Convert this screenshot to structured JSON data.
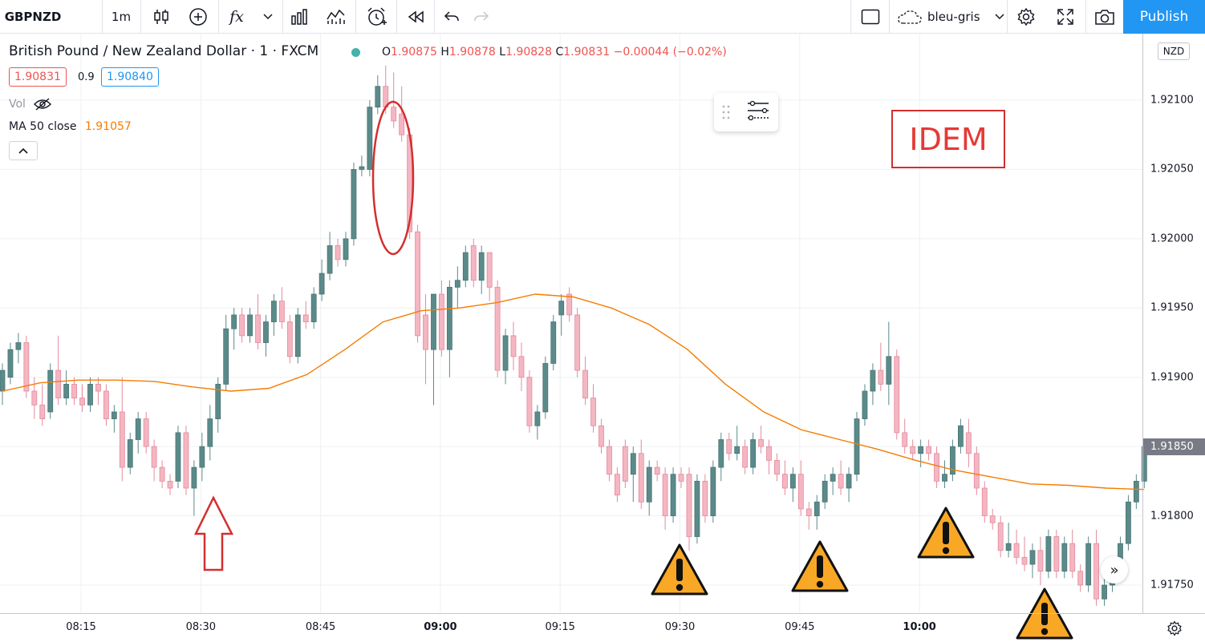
{
  "toolbar": {
    "symbol": "GBPNZD",
    "interval": "1m",
    "indicators_glyph": "fx",
    "theme_name": "bleu-gris",
    "publish_label": "Publish"
  },
  "legend": {
    "title": "British Pound / New Zealand Dollar · 1 · FXCM",
    "o_key": "O",
    "o": "1.90875",
    "h_key": "H",
    "h": "1.90878",
    "l_key": "L",
    "l": "1.90828",
    "c_key": "C",
    "c": "1.90831",
    "change": "−0.00044 (−0.02%)",
    "bid": "1.90831",
    "spread": "0.9",
    "ask": "1.90840",
    "vol_label": "Vol",
    "ma_label": "MA 50 close",
    "ma_value": "1.91057"
  },
  "price_scale": {
    "currency": "NZD",
    "current": "1.91850"
  },
  "annotation": {
    "text": "IDEM"
  },
  "colors": {
    "up": "#5b8a8a",
    "down": "#f4b6c2",
    "down_stroke": "#e48a9c",
    "ma": "#f57c00",
    "accent": "#2196f3",
    "annotation": "#d32f2f",
    "grid": "#eef0f3"
  },
  "icons": [
    "candles-icon",
    "add-indicator-icon",
    "fx-icon",
    "bar-chart-icon",
    "chart-templates-icon",
    "alarm-icon",
    "replay-icon",
    "undo-icon",
    "redo-icon",
    "layout-icon",
    "cloud-icon",
    "gear-icon",
    "fullscreen-icon",
    "camera-icon"
  ],
  "chart_data": {
    "type": "candlestick",
    "symbol": "GBPNZD",
    "timeframe": "1m",
    "time_ticks": [
      "08:15",
      "08:30",
      "08:45",
      "09:00",
      "09:15",
      "09:30",
      "09:45",
      "10:00"
    ],
    "price_ticks": [
      "1.91750",
      "1.91800",
      "1.91850",
      "1.91900",
      "1.91950",
      "1.92000",
      "1.92050",
      "1.92100"
    ],
    "ylim": [
      1.9171,
      1.9216
    ],
    "grid": true,
    "candles": [
      [
        1.9189,
        1.9191,
        1.9188,
        1.91905
      ],
      [
        1.919,
        1.91925,
        1.91895,
        1.9192
      ],
      [
        1.9192,
        1.91932,
        1.9191,
        1.91925
      ],
      [
        1.91925,
        1.9193,
        1.91885,
        1.9189
      ],
      [
        1.9189,
        1.919,
        1.9187,
        1.9188
      ],
      [
        1.9188,
        1.91895,
        1.91865,
        1.9187
      ],
      [
        1.91875,
        1.9191,
        1.9187,
        1.91905
      ],
      [
        1.91905,
        1.9193,
        1.9188,
        1.91885
      ],
      [
        1.91885,
        1.91905,
        1.9188,
        1.91895
      ],
      [
        1.91895,
        1.919,
        1.9188,
        1.91885
      ],
      [
        1.91885,
        1.91895,
        1.91875,
        1.9188
      ],
      [
        1.9188,
        1.919,
        1.91875,
        1.91895
      ],
      [
        1.91895,
        1.919,
        1.9188,
        1.9189
      ],
      [
        1.9189,
        1.91895,
        1.91865,
        1.9187
      ],
      [
        1.9187,
        1.9188,
        1.9186,
        1.91875
      ],
      [
        1.91875,
        1.919,
        1.91825,
        1.91835
      ],
      [
        1.91835,
        1.9186,
        1.9183,
        1.91855
      ],
      [
        1.91855,
        1.91875,
        1.91845,
        1.9187
      ],
      [
        1.9187,
        1.91875,
        1.91845,
        1.9185
      ],
      [
        1.9185,
        1.91855,
        1.91825,
        1.91835
      ],
      [
        1.91835,
        1.9184,
        1.9182,
        1.91825
      ],
      [
        1.91825,
        1.9183,
        1.91815,
        1.9182
      ],
      [
        1.91825,
        1.91865,
        1.9182,
        1.9186
      ],
      [
        1.9186,
        1.91865,
        1.91815,
        1.9182
      ],
      [
        1.9182,
        1.9184,
        1.918,
        1.91835
      ],
      [
        1.91835,
        1.9186,
        1.91825,
        1.9185
      ],
      [
        1.9185,
        1.9188,
        1.9184,
        1.9187
      ],
      [
        1.9187,
        1.919,
        1.9186,
        1.91895
      ],
      [
        1.91895,
        1.91945,
        1.9189,
        1.91935
      ],
      [
        1.91935,
        1.9195,
        1.9192,
        1.91945
      ],
      [
        1.91945,
        1.9195,
        1.91925,
        1.9193
      ],
      [
        1.9193,
        1.9195,
        1.91925,
        1.91945
      ],
      [
        1.91945,
        1.9196,
        1.9192,
        1.91925
      ],
      [
        1.91925,
        1.91945,
        1.91915,
        1.9194
      ],
      [
        1.9194,
        1.9196,
        1.9193,
        1.91955
      ],
      [
        1.91955,
        1.91965,
        1.91935,
        1.9194
      ],
      [
        1.9194,
        1.91945,
        1.9191,
        1.91915
      ],
      [
        1.91915,
        1.9195,
        1.9191,
        1.91945
      ],
      [
        1.91945,
        1.91955,
        1.91935,
        1.9194
      ],
      [
        1.9194,
        1.91965,
        1.91935,
        1.9196
      ],
      [
        1.9196,
        1.91985,
        1.91955,
        1.91975
      ],
      [
        1.91975,
        1.92005,
        1.9197,
        1.91995
      ],
      [
        1.91995,
        1.92,
        1.9198,
        1.91985
      ],
      [
        1.91985,
        1.92005,
        1.9198,
        1.92
      ],
      [
        1.92,
        1.92055,
        1.91995,
        1.9205
      ],
      [
        1.9205,
        1.9206,
        1.92045,
        1.92052
      ],
      [
        1.9205,
        1.921,
        1.92045,
        1.92095
      ],
      [
        1.92095,
        1.92118,
        1.9209,
        1.9211
      ],
      [
        1.9211,
        1.92125,
        1.9209,
        1.92095
      ],
      [
        1.92095,
        1.9212,
        1.9208,
        1.92085
      ],
      [
        1.9209,
        1.9211,
        1.9207,
        1.92075
      ],
      [
        1.92075,
        1.9208,
        1.92,
        1.92005
      ],
      [
        1.92005,
        1.9201,
        1.91925,
        1.9193
      ],
      [
        1.91945,
        1.9196,
        1.91895,
        1.9192
      ],
      [
        1.9192,
        1.9196,
        1.9188,
        1.9196
      ],
      [
        1.9196,
        1.9197,
        1.91915,
        1.9192
      ],
      [
        1.9192,
        1.9197,
        1.919,
        1.91965
      ],
      [
        1.91965,
        1.9198,
        1.9195,
        1.9197
      ],
      [
        1.9197,
        1.91995,
        1.91965,
        1.9199
      ],
      [
        1.91995,
        1.92,
        1.91965,
        1.9197
      ],
      [
        1.9197,
        1.91995,
        1.9196,
        1.9199
      ],
      [
        1.9199,
        1.9199,
        1.91955,
        1.91965
      ],
      [
        1.91965,
        1.9197,
        1.919,
        1.91905
      ],
      [
        1.91905,
        1.91935,
        1.91895,
        1.9193
      ],
      [
        1.9193,
        1.9194,
        1.91905,
        1.91915
      ],
      [
        1.91915,
        1.91925,
        1.9189,
        1.919
      ],
      [
        1.919,
        1.91905,
        1.9186,
        1.91865
      ],
      [
        1.91865,
        1.9188,
        1.91855,
        1.91875
      ],
      [
        1.91875,
        1.91915,
        1.9187,
        1.9191
      ],
      [
        1.9191,
        1.91945,
        1.91905,
        1.9194
      ],
      [
        1.91945,
        1.9196,
        1.9193,
        1.91955
      ],
      [
        1.9196,
        1.91965,
        1.9194,
        1.91945
      ],
      [
        1.91945,
        1.9195,
        1.919,
        1.91905
      ],
      [
        1.91905,
        1.91915,
        1.9188,
        1.91885
      ],
      [
        1.91885,
        1.91895,
        1.9186,
        1.91865
      ],
      [
        1.91865,
        1.9187,
        1.91845,
        1.9185
      ],
      [
        1.9185,
        1.91855,
        1.91825,
        1.9183
      ],
      [
        1.9183,
        1.91835,
        1.9181,
        1.91815
      ],
      [
        1.9185,
        1.91855,
        1.9182,
        1.91825
      ],
      [
        1.9183,
        1.9185,
        1.9181,
        1.91845
      ],
      [
        1.91845,
        1.91855,
        1.91805,
        1.9181
      ],
      [
        1.9181,
        1.9184,
        1.918,
        1.91835
      ],
      [
        1.91835,
        1.9184,
        1.91825,
        1.9183
      ],
      [
        1.9183,
        1.91835,
        1.9179,
        1.918
      ],
      [
        1.918,
        1.91835,
        1.91795,
        1.9183
      ],
      [
        1.9183,
        1.91835,
        1.9182,
        1.91825
      ],
      [
        1.9183,
        1.91835,
        1.91775,
        1.91785
      ],
      [
        1.91785,
        1.9183,
        1.9178,
        1.91825
      ],
      [
        1.91825,
        1.9183,
        1.91795,
        1.918
      ],
      [
        1.918,
        1.9184,
        1.91795,
        1.91835
      ],
      [
        1.91835,
        1.9186,
        1.91825,
        1.91855
      ],
      [
        1.91855,
        1.9186,
        1.9184,
        1.91845
      ],
      [
        1.91845,
        1.91865,
        1.9184,
        1.9185
      ],
      [
        1.9185,
        1.91855,
        1.9183,
        1.91835
      ],
      [
        1.91835,
        1.9186,
        1.9183,
        1.91855
      ],
      [
        1.91855,
        1.91865,
        1.91845,
        1.9185
      ],
      [
        1.9185,
        1.91855,
        1.9183,
        1.9184
      ],
      [
        1.9184,
        1.91845,
        1.91825,
        1.9183
      ],
      [
        1.9183,
        1.9184,
        1.91815,
        1.9182
      ],
      [
        1.9182,
        1.91835,
        1.9181,
        1.9183
      ],
      [
        1.9183,
        1.9184,
        1.918,
        1.91805
      ],
      [
        1.91805,
        1.9181,
        1.9179,
        1.918
      ],
      [
        1.918,
        1.91815,
        1.9179,
        1.9181
      ],
      [
        1.9181,
        1.9183,
        1.91805,
        1.91825
      ],
      [
        1.91825,
        1.91835,
        1.91815,
        1.9183
      ],
      [
        1.9183,
        1.9184,
        1.91815,
        1.9182
      ],
      [
        1.9182,
        1.91835,
        1.9181,
        1.9183
      ],
      [
        1.9183,
        1.91875,
        1.91825,
        1.9187
      ],
      [
        1.9187,
        1.91895,
        1.91865,
        1.9189
      ],
      [
        1.9189,
        1.9191,
        1.9188,
        1.91905
      ],
      [
        1.91905,
        1.91925,
        1.9189,
        1.91895
      ],
      [
        1.91895,
        1.9194,
        1.9188,
        1.91915
      ],
      [
        1.91915,
        1.9192,
        1.91855,
        1.9186
      ],
      [
        1.9186,
        1.9187,
        1.91845,
        1.9185
      ],
      [
        1.9185,
        1.91855,
        1.9184,
        1.91845
      ],
      [
        1.91845,
        1.91855,
        1.91835,
        1.9185
      ],
      [
        1.9185,
        1.91855,
        1.9184,
        1.91845
      ],
      [
        1.91845,
        1.9185,
        1.9182,
        1.91825
      ],
      [
        1.91825,
        1.9184,
        1.9182,
        1.9183
      ],
      [
        1.9183,
        1.91855,
        1.91825,
        1.9185
      ],
      [
        1.9185,
        1.9187,
        1.91845,
        1.91865
      ],
      [
        1.9186,
        1.9187,
        1.91835,
        1.91845
      ],
      [
        1.91845,
        1.9185,
        1.91815,
        1.9182
      ],
      [
        1.9182,
        1.91825,
        1.91795,
        1.918
      ],
      [
        1.918,
        1.91805,
        1.9179,
        1.91795
      ],
      [
        1.91795,
        1.918,
        1.9177,
        1.91775
      ],
      [
        1.91775,
        1.91795,
        1.9177,
        1.9178
      ],
      [
        1.9178,
        1.9179,
        1.91765,
        1.9177
      ],
      [
        1.9177,
        1.91785,
        1.9176,
        1.91765
      ],
      [
        1.91765,
        1.9178,
        1.91755,
        1.91775
      ],
      [
        1.91775,
        1.91785,
        1.9175,
        1.9176
      ],
      [
        1.9176,
        1.9179,
        1.91755,
        1.91785
      ],
      [
        1.91785,
        1.9179,
        1.91755,
        1.9176
      ],
      [
        1.9176,
        1.91785,
        1.91755,
        1.9178
      ],
      [
        1.9178,
        1.9179,
        1.91755,
        1.9176
      ],
      [
        1.9176,
        1.91765,
        1.91745,
        1.9175
      ],
      [
        1.9175,
        1.91785,
        1.91745,
        1.9178
      ],
      [
        1.9178,
        1.9179,
        1.91735,
        1.9174
      ],
      [
        1.9174,
        1.91755,
        1.91735,
        1.9175
      ],
      [
        1.9175,
        1.9177,
        1.91745,
        1.91765
      ],
      [
        1.91765,
        1.91785,
        1.9176,
        1.9178
      ],
      [
        1.9178,
        1.91815,
        1.91775,
        1.9181
      ],
      [
        1.9181,
        1.9183,
        1.91805,
        1.91825
      ],
      [
        1.91825,
        1.91855,
        1.9182,
        1.9185
      ]
    ],
    "ma50": [
      1.9189,
      1.91896,
      1.91898,
      1.91898,
      1.91897,
      1.91893,
      1.9189,
      1.91892,
      1.91902,
      1.9192,
      1.9194,
      1.91948,
      1.9195,
      1.91954,
      1.9196,
      1.91958,
      1.9195,
      1.91938,
      1.9192,
      1.91895,
      1.91875,
      1.91862,
      1.91855,
      1.91848,
      1.9184,
      1.91833,
      1.91828,
      1.91823,
      1.91822,
      1.9182,
      1.91819
    ]
  }
}
